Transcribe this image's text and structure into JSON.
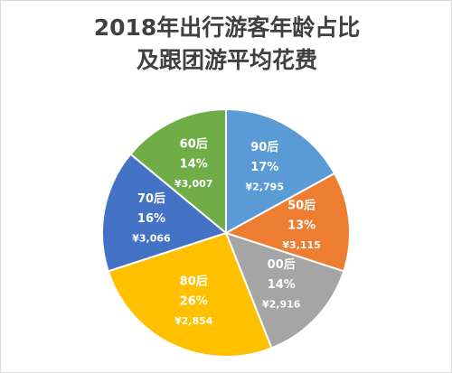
{
  "chart_data": {
    "type": "pie",
    "title_line1": "2018年出行游客年龄占比",
    "title_line2": "及跟团游平均花费",
    "slices": [
      {
        "category": "90后",
        "percent": "17%",
        "share": 17,
        "spend": "¥2,795",
        "color": "#5b9bd5"
      },
      {
        "category": "50后",
        "percent": "13%",
        "share": 13,
        "spend": "¥3,115",
        "color": "#ed7d31"
      },
      {
        "category": "00后",
        "percent": "14%",
        "share": 14,
        "spend": "¥2,916",
        "color": "#a5a5a5"
      },
      {
        "category": "80后",
        "percent": "26%",
        "share": 26,
        "spend": "¥2,854",
        "color": "#ffc000"
      },
      {
        "category": "70后",
        "percent": "16%",
        "share": 16,
        "spend": "¥3,066",
        "color": "#4472c4"
      },
      {
        "category": "60后",
        "percent": "14%",
        "share": 14,
        "spend": "¥3,007",
        "color": "#70ad47"
      }
    ],
    "start_angle_deg": 0,
    "direction": "clockwise",
    "legend": "none"
  }
}
